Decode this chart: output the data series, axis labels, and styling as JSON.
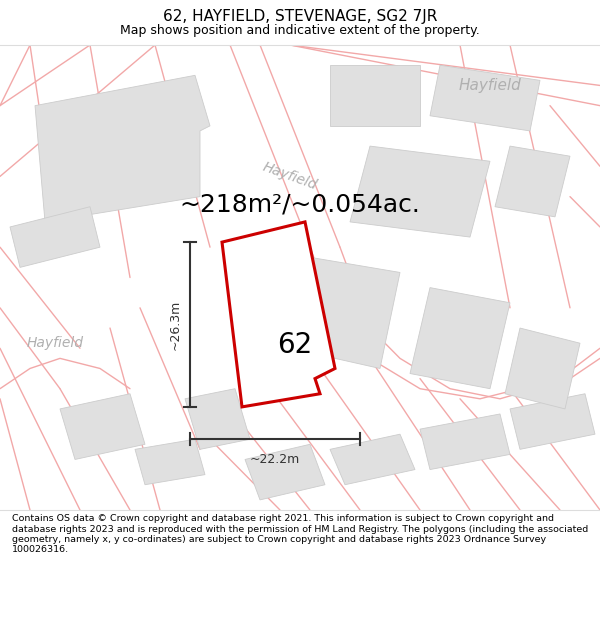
{
  "title": "62, HAYFIELD, STEVENAGE, SG2 7JR",
  "subtitle": "Map shows position and indicative extent of the property.",
  "area_text": "~218m²/~0.054ac.",
  "dim_width": "~22.2m",
  "dim_height": "~26.3m",
  "house_number": "62",
  "footer_text": "Contains OS data © Crown copyright and database right 2021. This information is subject to Crown copyright and database rights 2023 and is reproduced with the permission of HM Land Registry. The polygons (including the associated geometry, namely x, y co-ordinates) are subject to Crown copyright and database rights 2023 Ordnance Survey 100026316.",
  "bg_color": "#ffffff",
  "map_bg": "#ffffff",
  "road_color": "#f2a8a8",
  "building_fill": "#e0e0e0",
  "building_edge": "#cccccc",
  "property_fill": "#ffffff",
  "property_edge": "#cc0000",
  "dim_color": "#333333",
  "street_label_color": "#b0b0b0",
  "title_fontsize": 11,
  "subtitle_fontsize": 9,
  "area_fontsize": 18,
  "house_num_fontsize": 20,
  "dim_fontsize": 9,
  "footer_fontsize": 6.8,
  "road_lw": 1.0,
  "property_lw": 2.2
}
